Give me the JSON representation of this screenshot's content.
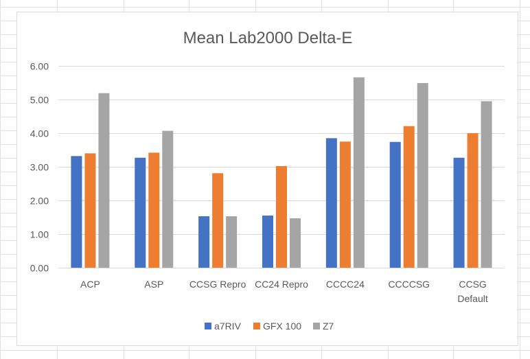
{
  "chart_data": {
    "type": "bar",
    "title": "Mean Lab2000 Delta-E",
    "xlabel": "",
    "ylabel": "",
    "categories": [
      "ACP",
      "ASP",
      "CCSG Repro",
      "CC24 Repro",
      "CCCC24",
      "CCCCSG",
      "CCSG Default"
    ],
    "category_lines": [
      [
        "ACP"
      ],
      [
        "ASP"
      ],
      [
        "CCSG Repro"
      ],
      [
        "CC24 Repro"
      ],
      [
        "CCCC24"
      ],
      [
        "CCCCSG"
      ],
      [
        "CCSG",
        "Default"
      ]
    ],
    "series": [
      {
        "name": "a7RIV",
        "color": "#4472c4",
        "values": [
          3.32,
          3.27,
          1.53,
          1.55,
          3.85,
          3.74,
          3.27
        ]
      },
      {
        "name": "GFX 100",
        "color": "#ed7d31",
        "values": [
          3.4,
          3.42,
          2.81,
          3.02,
          3.75,
          4.21,
          4.0
        ]
      },
      {
        "name": "Z7",
        "color": "#a5a5a5",
        "values": [
          5.19,
          4.07,
          1.53,
          1.47,
          5.66,
          5.49,
          4.95
        ]
      }
    ],
    "ylim": [
      0,
      6
    ],
    "yticks": [
      "0.00",
      "1.00",
      "2.00",
      "3.00",
      "4.00",
      "5.00",
      "6.00"
    ],
    "grid": true,
    "legend_position": "bottom"
  }
}
